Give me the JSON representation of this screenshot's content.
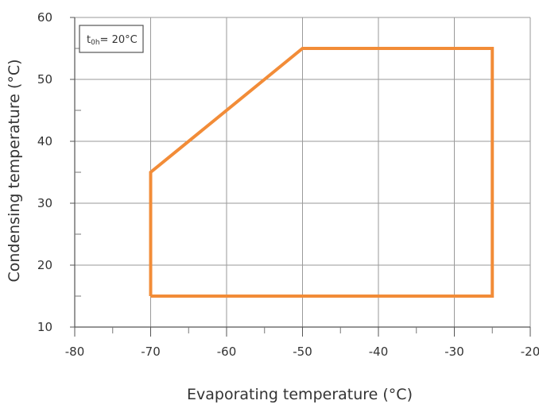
{
  "chart_data": {
    "type": "area",
    "title": "",
    "xlabel": "Evaporating temperature (°C)",
    "ylabel": "Condensing temperature (°C)",
    "xlim": [
      -80,
      -20
    ],
    "ylim": [
      10,
      60
    ],
    "x_major_ticks": [
      -80,
      -70,
      -60,
      -50,
      -40,
      -30,
      -20
    ],
    "x_tick_labels": [
      "-80",
      "-70",
      "-60",
      "-50",
      "-40",
      "-30",
      "-20"
    ],
    "y_major_ticks": [
      10,
      20,
      30,
      40,
      50,
      60
    ],
    "y_tick_labels": [
      "10",
      "20",
      "30",
      "40",
      "50",
      "60"
    ],
    "x_minor_ticks": [
      -75,
      -65,
      -55,
      -45,
      -35,
      -25
    ],
    "y_minor_ticks": [
      15,
      25,
      35,
      45,
      55
    ],
    "grid": true,
    "series": [
      {
        "x": [
          -70,
          -70,
          -50,
          -25,
          -25,
          -70
        ],
        "y": [
          15,
          35,
          55,
          55,
          15,
          15
        ],
        "color": "#f28c38"
      }
    ],
    "annotation": {
      "prefix": "t",
      "subscript": "0h",
      "text": "= 20°C",
      "position": "top-left"
    }
  }
}
